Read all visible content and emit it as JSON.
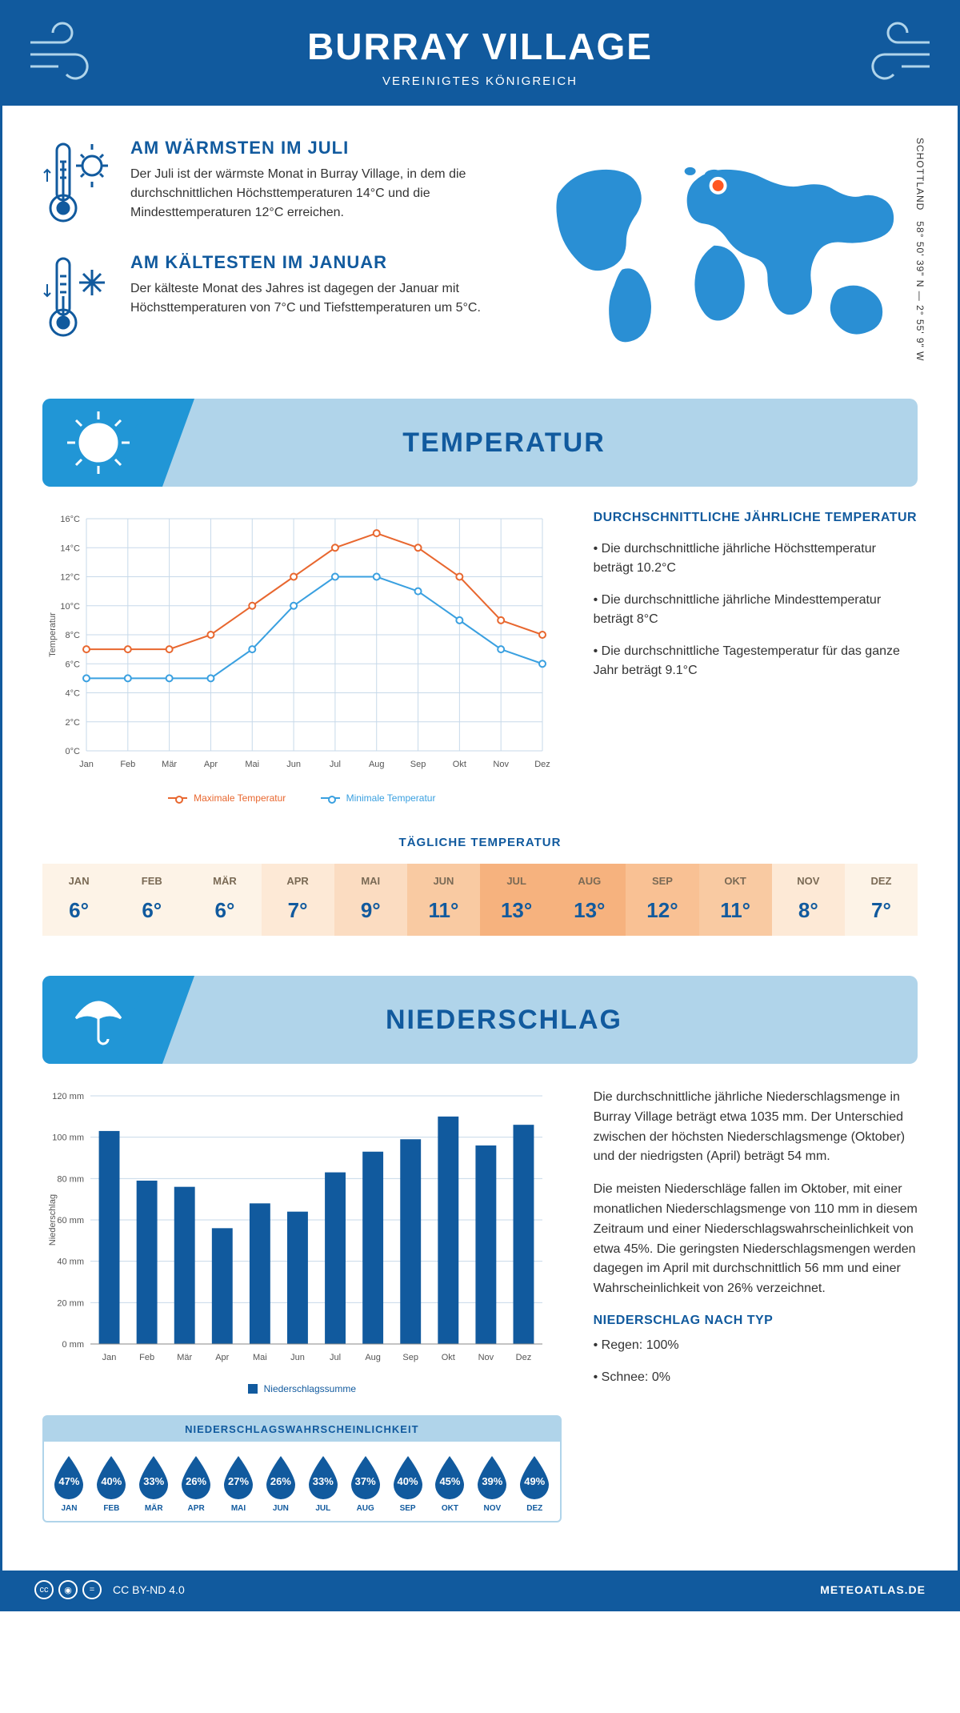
{
  "header": {
    "title": "BURRAY VILLAGE",
    "subtitle": "VEREINIGTES KÖNIGREICH"
  },
  "colors": {
    "primary": "#115a9e",
    "light_blue": "#b0d4ea",
    "band_icon": "#2196d6",
    "line_max": "#e8672f",
    "line_min": "#3aa0e0",
    "bar": "#115a9e",
    "grid": "#c7d9ea",
    "drop": "#115a9e",
    "marker": "#ff5722"
  },
  "intro": {
    "warm": {
      "title": "AM WÄRMSTEN IM JULI",
      "text": "Der Juli ist der wärmste Monat in Burray Village, in dem die durchschnittlichen Höchsttemperaturen 14°C und die Mindesttemperaturen 12°C erreichen."
    },
    "cold": {
      "title": "AM KÄLTESTEN IM JANUAR",
      "text": "Der kälteste Monat des Jahres ist dagegen der Januar mit Höchsttemperaturen von 7°C und Tiefsttemperaturen um 5°C."
    },
    "coords_line1": "58° 50' 39\" N — 2° 55' 9\" W",
    "coords_line2": "SCHOTTLAND"
  },
  "temperature_section": {
    "title": "TEMPERATUR",
    "chart": {
      "ylabel": "Temperatur",
      "months": [
        "Jan",
        "Feb",
        "Mär",
        "Apr",
        "Mai",
        "Jun",
        "Jul",
        "Aug",
        "Sep",
        "Okt",
        "Nov",
        "Dez"
      ],
      "y_ticks": [
        0,
        2,
        4,
        6,
        8,
        10,
        12,
        14,
        16
      ],
      "y_tick_labels": [
        "0°C",
        "2°C",
        "4°C",
        "6°C",
        "8°C",
        "10°C",
        "12°C",
        "14°C",
        "16°C"
      ],
      "ylim": [
        0,
        16
      ],
      "max_series": [
        7,
        7,
        7,
        8,
        10,
        12,
        14,
        15,
        14,
        12,
        9,
        8
      ],
      "min_series": [
        5,
        5,
        5,
        5,
        7,
        10,
        12,
        12,
        11,
        9,
        7,
        6
      ],
      "legend_max": "Maximale Temperatur",
      "legend_min": "Minimale Temperatur",
      "line_width": 2,
      "marker_radius": 4
    },
    "side": {
      "heading": "DURCHSCHNITTLICHE JÄHRLICHE TEMPERATUR",
      "b1": "• Die durchschnittliche jährliche Höchsttemperatur beträgt 10.2°C",
      "b2": "• Die durchschnittliche jährliche Mindesttemperatur beträgt 8°C",
      "b3": "• Die durchschnittliche Tagestemperatur für das ganze Jahr beträgt 9.1°C"
    },
    "daily_title": "TÄGLICHE TEMPERATUR",
    "daily": {
      "months": [
        "JAN",
        "FEB",
        "MÄR",
        "APR",
        "MAI",
        "JUN",
        "JUL",
        "AUG",
        "SEP",
        "OKT",
        "NOV",
        "DEZ"
      ],
      "values": [
        "6°",
        "6°",
        "6°",
        "7°",
        "9°",
        "11°",
        "13°",
        "13°",
        "12°",
        "11°",
        "8°",
        "7°"
      ],
      "bg_colors": [
        "#fdf3e7",
        "#fdf3e7",
        "#fdf3e7",
        "#fde9d6",
        "#fbdcc1",
        "#f9caa2",
        "#f6b27e",
        "#f6b27e",
        "#f9c194",
        "#f9caa2",
        "#fde9d6",
        "#fdf3e7"
      ]
    }
  },
  "precip_section": {
    "title": "NIEDERSCHLAG",
    "chart": {
      "ylabel": "Niederschlag",
      "months": [
        "Jan",
        "Feb",
        "Mär",
        "Apr",
        "Mai",
        "Jun",
        "Jul",
        "Aug",
        "Sep",
        "Okt",
        "Nov",
        "Dez"
      ],
      "y_ticks": [
        0,
        20,
        40,
        60,
        80,
        100,
        120
      ],
      "y_tick_labels": [
        "0 mm",
        "20 mm",
        "40 mm",
        "60 mm",
        "80 mm",
        "100 mm",
        "120 mm"
      ],
      "ylim": [
        0,
        120
      ],
      "values": [
        103,
        79,
        76,
        56,
        68,
        64,
        83,
        93,
        99,
        110,
        96,
        106
      ],
      "legend": "Niederschlagssumme",
      "bar_width": 0.55
    },
    "side": {
      "p1": "Die durchschnittliche jährliche Niederschlagsmenge in Burray Village beträgt etwa 1035 mm. Der Unterschied zwischen der höchsten Niederschlagsmenge (Oktober) und der niedrigsten (April) beträgt 54 mm.",
      "p2": "Die meisten Niederschläge fallen im Oktober, mit einer monatlichen Niederschlagsmenge von 110 mm in diesem Zeitraum und einer Niederschlagswahrscheinlichkeit von etwa 45%. Die geringsten Niederschlagsmengen werden dagegen im April mit durchschnittlich 56 mm und einer Wahrscheinlichkeit von 26% verzeichnet.",
      "type_title": "NIEDERSCHLAG NACH TYP",
      "type1": "• Regen: 100%",
      "type2": "• Schnee: 0%"
    },
    "probability": {
      "title": "NIEDERSCHLAGSWAHRSCHEINLICHKEIT",
      "months": [
        "JAN",
        "FEB",
        "MÄR",
        "APR",
        "MAI",
        "JUN",
        "JUL",
        "AUG",
        "SEP",
        "OKT",
        "NOV",
        "DEZ"
      ],
      "values": [
        "47%",
        "40%",
        "33%",
        "26%",
        "27%",
        "26%",
        "33%",
        "37%",
        "40%",
        "45%",
        "39%",
        "49%"
      ]
    }
  },
  "footer": {
    "license": "CC BY-ND 4.0",
    "brand": "METEOATLAS.DE"
  }
}
